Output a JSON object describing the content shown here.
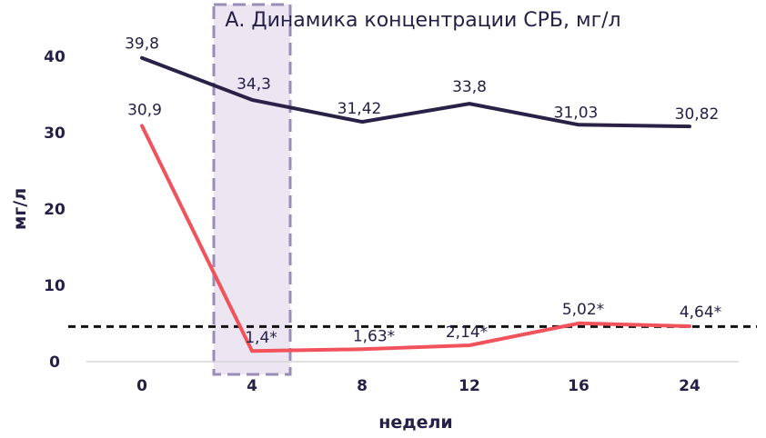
{
  "chart_data": {
    "type": "line",
    "title": "А. Динамика концентрации СРБ, мг/л",
    "xlabel": "недели",
    "ylabel": "мг/л",
    "categories": [
      "0",
      "4",
      "8",
      "12",
      "16",
      "24"
    ],
    "yticks": [
      "0",
      "10",
      "20",
      "30",
      "40"
    ],
    "ylim": [
      0,
      40
    ],
    "grid": false,
    "reference_line_y": 4.6,
    "highlight_category": "4",
    "colors": {
      "series1": "#2a2246",
      "series2": "#f2525c",
      "text": "#252045",
      "highlight_fill": "#ebe6f2",
      "highlight_border": "#9a8cb8"
    },
    "series": [
      {
        "values": [
          39.8,
          34.3,
          31.42,
          33.8,
          31.03,
          30.82
        ],
        "labels": [
          "39,8",
          "34,3",
          "31,42",
          "33,8",
          "31,03",
          "30,82"
        ]
      },
      {
        "values": [
          30.9,
          1.4,
          1.63,
          2.14,
          5.02,
          4.64
        ],
        "labels": [
          "30,9",
          "1,4*",
          "1,63*",
          "2,14*",
          "5,02*",
          "4,64*"
        ]
      }
    ]
  }
}
